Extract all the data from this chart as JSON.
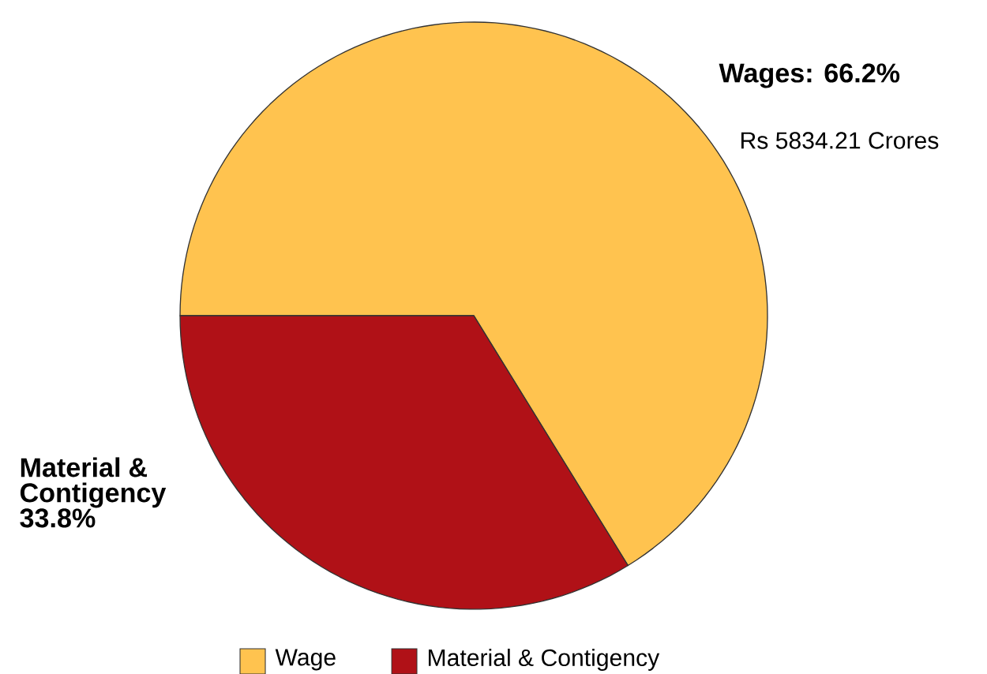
{
  "chart_data": {
    "type": "pie",
    "categories": [
      "Wage",
      "Material & Contigency"
    ],
    "values": [
      66.2,
      33.8
    ],
    "colors": [
      "#ffc34f",
      "#b01117"
    ],
    "legend": "bottom",
    "annotations": [
      "Wages: 66.2%",
      "Rs 5834.21 Crores",
      "Material & Contigency 33.8%"
    ]
  }
}
